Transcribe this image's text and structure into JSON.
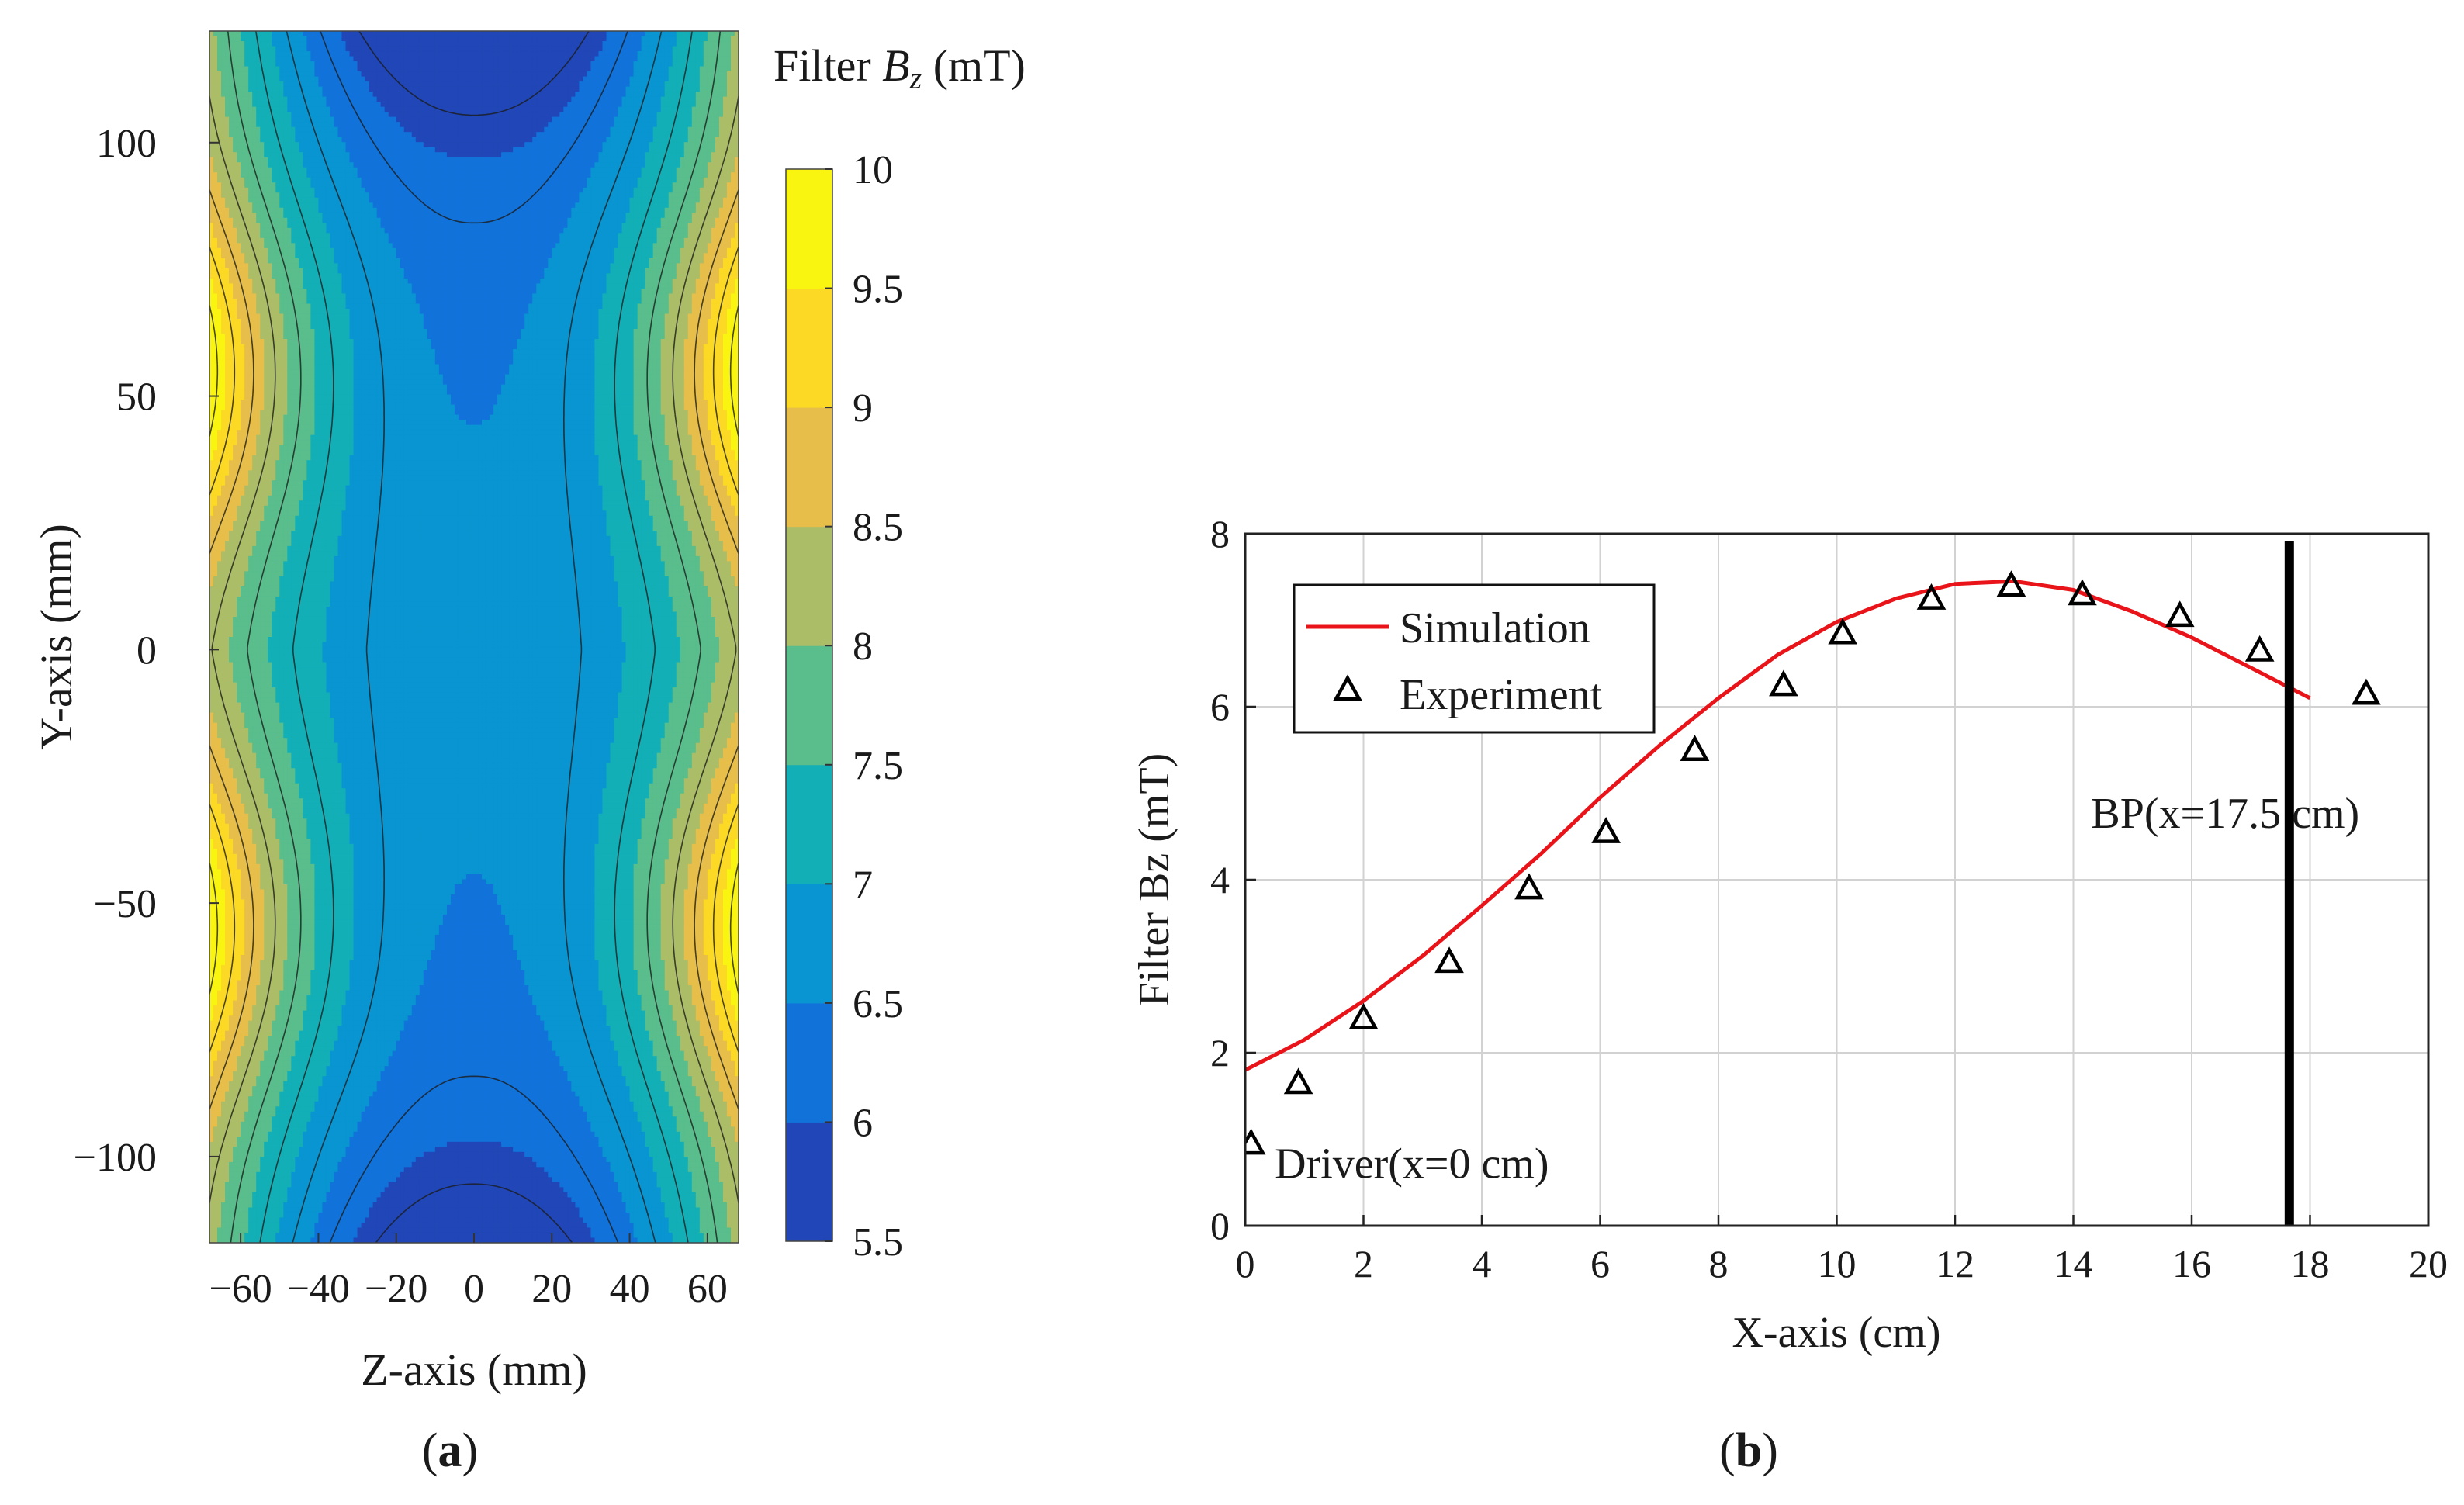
{
  "chart_data": [
    {
      "panel_label": "a",
      "type": "heatmap",
      "subtype": "filled-contour",
      "colorbar_title": {
        "prefix": "Filter ",
        "var": "B",
        "sub": "z",
        "suffix": " (mT)"
      },
      "xlabel": "Z-axis (mm)",
      "ylabel": "Y-axis (mm)",
      "xlim": [
        -68,
        68
      ],
      "ylim": [
        -117,
        122
      ],
      "xticks": [
        -60,
        -40,
        -20,
        0,
        20,
        40,
        60
      ],
      "xtick_labels": [
        "−60",
        "−40",
        "−20",
        "0",
        "20",
        "40",
        "60"
      ],
      "yticks": [
        100,
        50,
        0,
        -50,
        -100
      ],
      "ytick_labels": [
        "100",
        "50",
        "0",
        "−50",
        "−100"
      ],
      "colorbar": {
        "range": [
          5.5,
          10
        ],
        "ticks": [
          10,
          9.5,
          9,
          8.5,
          8,
          7.5,
          7,
          6.5,
          6,
          5.5
        ],
        "tick_labels": [
          "10",
          "9.5",
          "9",
          "8.5",
          "8",
          "7.5",
          "7",
          "6.5",
          "6",
          "5.5"
        ],
        "colormap": "parula"
      },
      "contour_levels": [
        5.75,
        6.25,
        6.75,
        7.25,
        7.75,
        8.25,
        8.75,
        9.25,
        9.75
      ],
      "field_description": "Bz ~6.6 mT in centre, rising toward +/-68 mm in Z (peaks ~10 near Y=+/-55), dropping to ~5.6 at Y extremes near Z=0"
    },
    {
      "panel_label": "b",
      "type": "line",
      "xlabel": "X-axis (cm)",
      "ylabel": "Filter Bz (mT)",
      "xlim": [
        0,
        20
      ],
      "ylim": [
        0,
        8
      ],
      "xticks": [
        0,
        2,
        4,
        6,
        8,
        10,
        12,
        14,
        16,
        18,
        20
      ],
      "xtick_labels": [
        "0",
        "2",
        "4",
        "6",
        "8",
        "10",
        "12",
        "14",
        "16",
        "18",
        "20"
      ],
      "yticks": [
        0,
        2,
        4,
        6,
        8
      ],
      "ytick_labels": [
        "0",
        "2",
        "4",
        "6",
        "8"
      ],
      "grid": true,
      "legend_position": "top-left",
      "series": [
        {
          "name": "Simulation",
          "kind": "line",
          "color": "#e8141a",
          "x": [
            0,
            1,
            2,
            3,
            4,
            5,
            6,
            7,
            8,
            9,
            10,
            11,
            12,
            13,
            14,
            15,
            16,
            17,
            18
          ],
          "y": [
            1.8,
            2.15,
            2.6,
            3.12,
            3.7,
            4.3,
            4.95,
            5.55,
            6.1,
            6.6,
            6.98,
            7.25,
            7.42,
            7.45,
            7.35,
            7.1,
            6.8,
            6.45,
            6.1
          ]
        },
        {
          "name": "Experiment",
          "kind": "marker",
          "marker": "triangle",
          "color": "#000000",
          "x": [
            0.1,
            0.9,
            2.0,
            3.45,
            4.8,
            6.1,
            7.6,
            9.1,
            10.1,
            11.6,
            12.95,
            14.15,
            15.8,
            17.15,
            18.95
          ],
          "y": [
            0.95,
            1.65,
            2.4,
            3.05,
            3.9,
            4.55,
            5.5,
            6.25,
            6.85,
            7.25,
            7.4,
            7.3,
            7.05,
            6.65,
            6.15
          ]
        }
      ],
      "annotations": [
        {
          "text": "BP(x=17.5 cm)",
          "x": 14.3,
          "y": 4.6
        },
        {
          "text": "Driver(x=0 cm)",
          "x": 0.5,
          "y": 0.55
        }
      ],
      "vertical_line": {
        "x": 17.65,
        "color": "#000000"
      }
    }
  ],
  "captions": {
    "a": {
      "open": "(",
      "letter": "a",
      "close": ")"
    },
    "b": {
      "open": "(",
      "letter": "b",
      "close": ")"
    }
  }
}
